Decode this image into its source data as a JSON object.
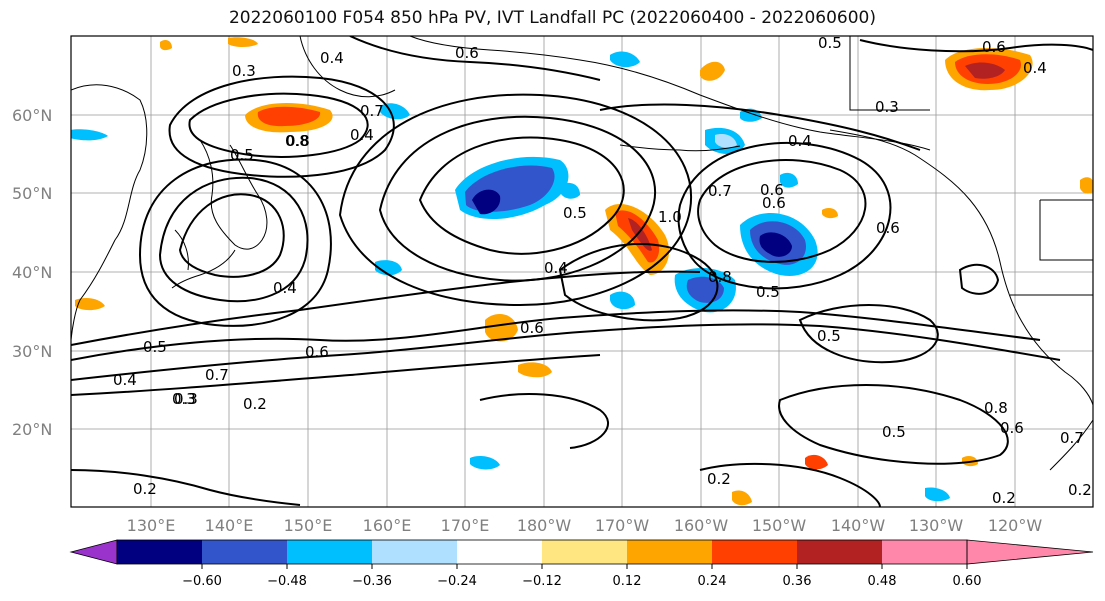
{
  "title": "2022060100 F054 850 hPa PV, IVT Landfall PC (2022060400 - 2022060600)",
  "map": {
    "lat_labels": [
      "60°N",
      "50°N",
      "40°N",
      "30°N",
      "20°N"
    ],
    "lon_labels": [
      "130°E",
      "140°E",
      "150°E",
      "160°E",
      "170°E",
      "180°W",
      "170°W",
      "160°W",
      "150°W",
      "140°W",
      "130°W",
      "120°W"
    ],
    "contour_labels": [
      "0.2",
      "0.3",
      "0.4",
      "0.5",
      "0.6",
      "0.7",
      "0.8",
      "1.0",
      "0.4",
      "0.5",
      "0.6",
      "0.8",
      "0.5",
      "0.6",
      "0.2",
      "0.3",
      "0.7",
      "0.5",
      "0.4",
      "0.6",
      "0.3",
      "0.8",
      "0.4",
      "0.5",
      "0.6",
      "0.7",
      "0.2",
      "0.4",
      "0.8",
      "0.5",
      "0.5",
      "0.2",
      "0.6",
      "0.3",
      "0.7",
      "0.6",
      "0.4",
      "0.4",
      "0.2",
      "0.6"
    ]
  },
  "colorbar": {
    "ticks": [
      "−0.60",
      "−0.48",
      "−0.36",
      "−0.24",
      "−0.12",
      "0.12",
      "0.24",
      "0.36",
      "0.48",
      "0.60"
    ],
    "colors": [
      "#9933cc",
      "#000080",
      "#3355cc",
      "#00bfff",
      "#b0e0ff",
      "#ffffff",
      "#ffe680",
      "#ffa500",
      "#ff4000",
      "#b22222",
      "#ff88aa"
    ]
  }
}
